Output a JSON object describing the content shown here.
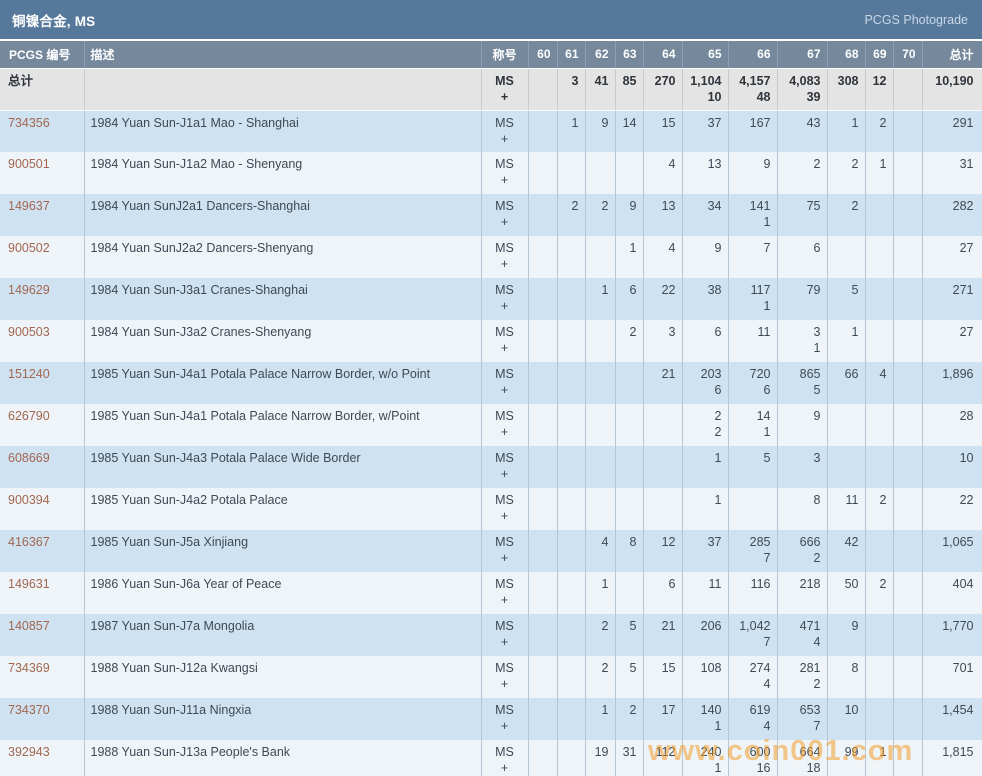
{
  "title_bar": {
    "title": "铜镍合金, MS",
    "link": "PCGS Photograde"
  },
  "table": {
    "headers": {
      "pcgs_number": "PCGS 编号",
      "description": "描述",
      "designation": "称号",
      "grades": [
        "60",
        "61",
        "62",
        "63",
        "64",
        "65",
        "66",
        "67",
        "68",
        "69",
        "70"
      ],
      "total": "总计"
    },
    "designation_labels": {
      "line1": "MS",
      "line2": "+"
    },
    "totals_row": {
      "label": "总计",
      "ms": [
        "",
        "3",
        "41",
        "85",
        "270",
        "1,104",
        "4,157",
        "4,083",
        "308",
        "12",
        ""
      ],
      "plus": [
        "",
        "",
        "",
        "",
        "",
        "10",
        "48",
        "39",
        "",
        "",
        ""
      ],
      "total": "10,190"
    },
    "rows": [
      {
        "pcgs_number": "734356",
        "description": "1984 Yuan Sun-J1a1 Mao - Shanghai",
        "ms": [
          "",
          "1",
          "9",
          "14",
          "15",
          "37",
          "167",
          "43",
          "1",
          "2",
          ""
        ],
        "plus": [
          "",
          "",
          "",
          "",
          "",
          "",
          "",
          "",
          "",
          "",
          ""
        ],
        "total": "291"
      },
      {
        "pcgs_number": "900501",
        "description": "1984 Yuan Sun-J1a2 Mao - Shenyang",
        "ms": [
          "",
          "",
          "",
          "",
          "4",
          "13",
          "9",
          "2",
          "2",
          "1",
          ""
        ],
        "plus": [
          "",
          "",
          "",
          "",
          "",
          "",
          "",
          "",
          "",
          "",
          ""
        ],
        "total": "31"
      },
      {
        "pcgs_number": "149637",
        "description": "1984 Yuan SunJ2a1 Dancers-Shanghai",
        "ms": [
          "",
          "2",
          "2",
          "9",
          "13",
          "34",
          "141",
          "75",
          "2",
          "",
          ""
        ],
        "plus": [
          "",
          "",
          "",
          "",
          "",
          "",
          "1",
          "",
          "",
          "",
          ""
        ],
        "total": "282"
      },
      {
        "pcgs_number": "900502",
        "description": "1984 Yuan SunJ2a2 Dancers-Shenyang",
        "ms": [
          "",
          "",
          "",
          "1",
          "4",
          "9",
          "7",
          "6",
          "",
          "",
          ""
        ],
        "plus": [
          "",
          "",
          "",
          "",
          "",
          "",
          "",
          "",
          "",
          "",
          ""
        ],
        "total": "27"
      },
      {
        "pcgs_number": "149629",
        "description": "1984 Yuan Sun-J3a1 Cranes-Shanghai",
        "ms": [
          "",
          "",
          "1",
          "6",
          "22",
          "38",
          "117",
          "79",
          "5",
          "",
          ""
        ],
        "plus": [
          "",
          "",
          "",
          "",
          "",
          "",
          "1",
          "",
          "",
          "",
          ""
        ],
        "total": "271"
      },
      {
        "pcgs_number": "900503",
        "description": "1984 Yuan Sun-J3a2 Cranes-Shenyang",
        "ms": [
          "",
          "",
          "",
          "2",
          "3",
          "6",
          "11",
          "3",
          "1",
          "",
          ""
        ],
        "plus": [
          "",
          "",
          "",
          "",
          "",
          "",
          "",
          "1",
          "",
          "",
          ""
        ],
        "total": "27"
      },
      {
        "pcgs_number": "151240",
        "description": "1985 Yuan Sun-J4a1 Potala Palace Narrow Border, w/o Point",
        "ms": [
          "",
          "",
          "",
          "",
          "21",
          "203",
          "720",
          "865",
          "66",
          "4",
          ""
        ],
        "plus": [
          "",
          "",
          "",
          "",
          "",
          "6",
          "6",
          "5",
          "",
          "",
          ""
        ],
        "total": "1,896"
      },
      {
        "pcgs_number": "626790",
        "description": "1985 Yuan Sun-J4a1 Potala Palace Narrow Border, w/Point",
        "ms": [
          "",
          "",
          "",
          "",
          "",
          "2",
          "14",
          "9",
          "",
          "",
          ""
        ],
        "plus": [
          "",
          "",
          "",
          "",
          "",
          "2",
          "1",
          "",
          "",
          "",
          ""
        ],
        "total": "28"
      },
      {
        "pcgs_number": "608669",
        "description": "1985 Yuan Sun-J4a3 Potala Palace Wide Border",
        "ms": [
          "",
          "",
          "",
          "",
          "",
          "1",
          "5",
          "3",
          "",
          "",
          ""
        ],
        "plus": [
          "",
          "",
          "",
          "",
          "",
          "",
          "",
          "",
          "",
          "",
          ""
        ],
        "total": "10"
      },
      {
        "pcgs_number": "900394",
        "description": "1985 Yuan Sun-J4a2 Potala Palace",
        "ms": [
          "",
          "",
          "",
          "",
          "",
          "1",
          "",
          "8",
          "11",
          "2",
          ""
        ],
        "plus": [
          "",
          "",
          "",
          "",
          "",
          "",
          "",
          "",
          "",
          "",
          ""
        ],
        "total": "22"
      },
      {
        "pcgs_number": "416367",
        "description": "1985 Yuan Sun-J5a Xinjiang",
        "ms": [
          "",
          "",
          "4",
          "8",
          "12",
          "37",
          "285",
          "666",
          "42",
          "",
          ""
        ],
        "plus": [
          "",
          "",
          "",
          "",
          "",
          "",
          "7",
          "2",
          "",
          "",
          ""
        ],
        "total": "1,065"
      },
      {
        "pcgs_number": "149631",
        "description": "1986 Yuan Sun-J6a Year of Peace",
        "ms": [
          "",
          "",
          "1",
          "",
          "6",
          "11",
          "116",
          "218",
          "50",
          "2",
          ""
        ],
        "plus": [
          "",
          "",
          "",
          "",
          "",
          "",
          "",
          "",
          "",
          "",
          ""
        ],
        "total": "404"
      },
      {
        "pcgs_number": "140857",
        "description": "1987 Yuan Sun-J7a Mongolia",
        "ms": [
          "",
          "",
          "2",
          "5",
          "21",
          "206",
          "1,042",
          "471",
          "9",
          "",
          ""
        ],
        "plus": [
          "",
          "",
          "",
          "",
          "",
          "",
          "7",
          "4",
          "",
          "",
          ""
        ],
        "total": "1,770"
      },
      {
        "pcgs_number": "734369",
        "description": "1988 Yuan Sun-J12a Kwangsi",
        "ms": [
          "",
          "",
          "2",
          "5",
          "15",
          "108",
          "274",
          "281",
          "8",
          "",
          ""
        ],
        "plus": [
          "",
          "",
          "",
          "",
          "",
          "",
          "4",
          "2",
          "",
          "",
          ""
        ],
        "total": "701"
      },
      {
        "pcgs_number": "734370",
        "description": "1988 Yuan Sun-J11a Ningxia",
        "ms": [
          "",
          "",
          "1",
          "2",
          "17",
          "140",
          "619",
          "653",
          "10",
          "",
          ""
        ],
        "plus": [
          "",
          "",
          "",
          "",
          "",
          "1",
          "4",
          "7",
          "",
          "",
          ""
        ],
        "total": "1,454"
      },
      {
        "pcgs_number": "392943",
        "description": "1988 Yuan Sun-J13a People's Bank",
        "ms": [
          "",
          "",
          "19",
          "31",
          "112",
          "240",
          "600",
          "664",
          "99",
          "1",
          ""
        ],
        "plus": [
          "",
          "",
          "",
          "",
          "",
          "1",
          "16",
          "18",
          "",
          "",
          ""
        ],
        "total": "1,815"
      }
    ]
  },
  "watermark": "www.coin001.com",
  "colors": {
    "title_bar_bg": "#56789B",
    "header_row_bg": "#75889C",
    "totals_row_bg": "#E4E4E4",
    "row_blue": "#CFE2F1",
    "row_white": "#EFF4F9",
    "pcgs_link": "#A2674F",
    "photograde_link": "#C9D7E6",
    "watermark": "#F39C2A"
  }
}
